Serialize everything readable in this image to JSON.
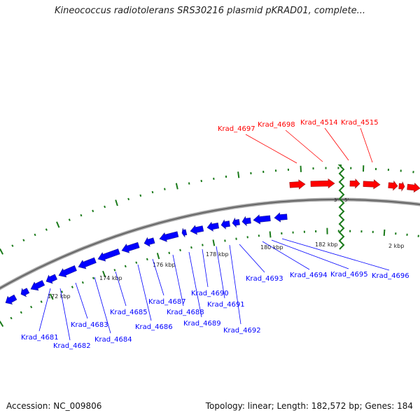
{
  "title": "Kineococcus radiotolerans SRS30216 plasmid pKRAD01, complete...",
  "footer": {
    "accession": "Accession: NC_009806",
    "topology": "Topology: linear; Length: 182,572 bp; Genes: 184"
  },
  "colors": {
    "forward": "#ff0000",
    "reverse": "#0000ff",
    "ticks": "#1a7a1a",
    "backbone": "#888888"
  },
  "ends": {
    "left": "3'",
    "right": "5'"
  },
  "scale_labels": [
    "172 kbp",
    "174 kbp",
    "176 kbp",
    "178 kbp",
    "180 kbp",
    "182 kbp",
    "2 kbp"
  ],
  "genes": [
    {
      "name": "Krad_4681",
      "strand": "reverse"
    },
    {
      "name": "Krad_4682",
      "strand": "reverse"
    },
    {
      "name": "Krad_4683",
      "strand": "reverse"
    },
    {
      "name": "Krad_4684",
      "strand": "reverse"
    },
    {
      "name": "Krad_4685",
      "strand": "reverse"
    },
    {
      "name": "Krad_4686",
      "strand": "reverse"
    },
    {
      "name": "Krad_4687",
      "strand": "reverse"
    },
    {
      "name": "Krad_4688",
      "strand": "reverse"
    },
    {
      "name": "Krad_4689",
      "strand": "reverse"
    },
    {
      "name": "Krad_4690",
      "strand": "reverse"
    },
    {
      "name": "Krad_4691",
      "strand": "reverse"
    },
    {
      "name": "Krad_4692",
      "strand": "reverse"
    },
    {
      "name": "Krad_4693",
      "strand": "reverse"
    },
    {
      "name": "Krad_4694",
      "strand": "reverse"
    },
    {
      "name": "Krad_4695",
      "strand": "reverse"
    },
    {
      "name": "Krad_4696",
      "strand": "reverse"
    },
    {
      "name": "Krad_4697",
      "strand": "forward"
    },
    {
      "name": "Krad_4698",
      "strand": "forward"
    },
    {
      "name": "Krad_4514",
      "strand": "forward"
    },
    {
      "name": "Krad_4515",
      "strand": "forward"
    }
  ]
}
